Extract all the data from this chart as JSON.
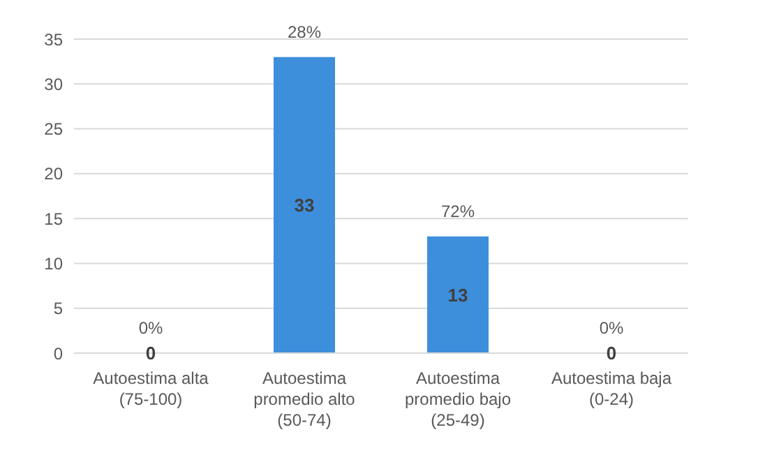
{
  "chart_data": {
    "type": "bar",
    "categories": [
      "Autoestima alta (75-100)",
      "Autoestima promedio alto (50-74)",
      "Autoestima promedio bajo (25-49)",
      "Autoestima baja (0-24)"
    ],
    "values": [
      0,
      33,
      13,
      0
    ],
    "color": "#3d8fdc",
    "ylim": [
      0,
      35
    ],
    "yticks": [
      0,
      5,
      10,
      15,
      20,
      25,
      30,
      35
    ],
    "grid": "y",
    "value_labels": [
      "0",
      "33",
      "13",
      "0"
    ],
    "annotations": [
      {
        "text": "0%",
        "x": "Autoestima alta (75-100)",
        "y": 0
      },
      {
        "text": "28%",
        "x": "Autoestima promedio alto (50-74)",
        "y": 33
      },
      {
        "text": "72%",
        "x": "Autoestima promedio bajo (25-49)",
        "y": 13
      },
      {
        "text": "0%",
        "x": "Autoestima baja (0-24)",
        "y": 0
      }
    ]
  }
}
